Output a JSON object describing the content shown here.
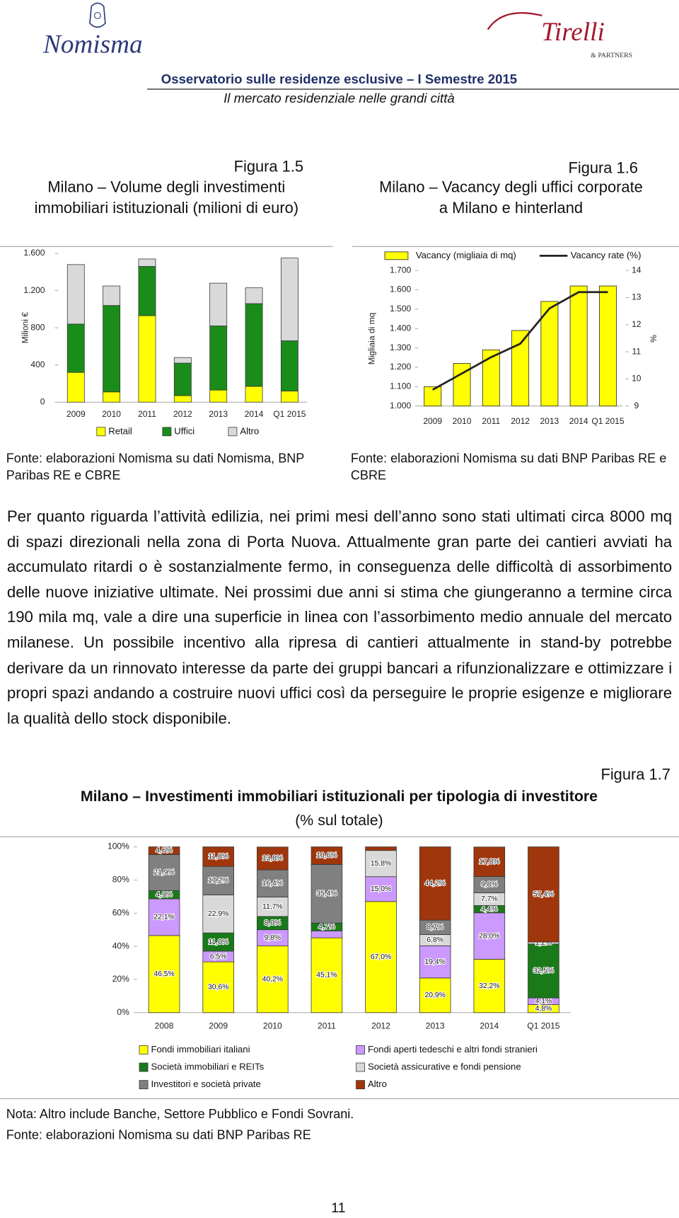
{
  "header": {
    "logo_left": "Nomisma",
    "logo_right": "Tirelli",
    "logo_right_sub": "& PARTNERS",
    "title": "Osservatorio sulle residenze esclusive – I Semestre 2015",
    "subtitle": "Il mercato residenziale nelle grandi città"
  },
  "chart_data": [
    {
      "type": "bar",
      "stacked": true,
      "figure": "Figura 1.5",
      "title": "Milano – Volume degli investimenti immobiliari istituzionali (milioni di euro)",
      "y_label": "Milioni €",
      "categories": [
        "2009",
        "2010",
        "2011",
        "2012",
        "2013",
        "2014",
        "Q1 2015"
      ],
      "series": [
        {
          "name": "Retail",
          "color": "#ffff00",
          "values": [
            320,
            110,
            930,
            70,
            130,
            170,
            120
          ]
        },
        {
          "name": "Uffici",
          "color": "#1a8c1a",
          "values": [
            520,
            930,
            530,
            350,
            690,
            890,
            540
          ]
        },
        {
          "name": "Altro",
          "color": "#d9d9d9",
          "values": [
            640,
            210,
            80,
            60,
            460,
            170,
            890
          ]
        }
      ],
      "ylim": [
        0,
        1600
      ],
      "yticks": [
        0,
        400,
        800,
        {
          "value": 1200,
          "label": "1.200"
        },
        {
          "value": 1600,
          "label": "1.600"
        }
      ],
      "source": "Fonte: elaborazioni Nomisma su dati Nomisma, BNP Paribas RE e CBRE"
    },
    {
      "type": "combo",
      "figure": "Figura 1.6",
      "title": "Milano – Vacancy degli uffici corporate a Milano e hinterland",
      "y_label": "Migliaia di mq",
      "y2_label": "%",
      "categories": [
        "2009",
        "2010",
        "2011",
        "2012",
        "2013",
        "2014",
        "Q1 2015"
      ],
      "series": [
        {
          "name": "Vacancy (migliaia di mq)",
          "type": "bar",
          "color": "#ffff00",
          "values": [
            1100,
            1220,
            1290,
            1390,
            1540,
            1620,
            1620
          ]
        },
        {
          "name": "Vacancy rate (%)",
          "type": "line",
          "axis": "y2",
          "color": "#222222",
          "values": [
            9.6,
            10.2,
            10.8,
            11.3,
            12.6,
            13.2,
            13.2
          ]
        }
      ],
      "ylim": [
        1000,
        1700
      ],
      "yticks": [
        {
          "value": 1000,
          "label": "1.000"
        },
        {
          "value": 1100,
          "label": "1.100"
        },
        {
          "value": 1200,
          "label": "1.200"
        },
        {
          "value": 1300,
          "label": "1.300"
        },
        {
          "value": 1400,
          "label": "1.400"
        },
        {
          "value": 1500,
          "label": "1.500"
        },
        {
          "value": 1600,
          "label": "1.600"
        },
        {
          "value": 1700,
          "label": "1.700"
        }
      ],
      "y2lim": [
        9,
        14
      ],
      "y2ticks": [
        9,
        10,
        11,
        12,
        13,
        14
      ],
      "source": "Fonte: elaborazioni Nomisma su dati BNP Paribas RE e CBRE"
    },
    {
      "type": "bar",
      "stacked": true,
      "figure": "Figura 1.7",
      "title": "Milano – Investimenti immobiliari istituzionali per tipologia di investitore",
      "subtitle": "(% sul totale)",
      "categories": [
        "2008",
        "2009",
        "2010",
        "2011",
        "2012",
        "2013",
        "2014",
        "Q1 2015"
      ],
      "series": [
        {
          "name": "Fondi immobiliari italiani",
          "color": "#ffff00",
          "values": [
            46.5,
            30.6,
            40.2,
            45.1,
            67.0,
            20.9,
            32.2,
            4.8
          ],
          "value_labels": [
            "46,5%",
            "30,6%",
            "40,2%",
            "45,1%",
            "67,0%",
            "20,9%",
            "32,2%",
            "4,8%"
          ]
        },
        {
          "name": "Fondi aperti tedeschi e altri fondi stranieri",
          "color": "#cc99ff",
          "values": [
            22.1,
            6.5,
            9.8,
            4.2,
            15.0,
            19.4,
            28.0,
            4.1
          ],
          "value_labels": [
            "22,1%",
            "6,5%",
            "9,8%",
            null,
            "15,0%",
            "19,4%",
            "28,0%",
            "4,1%"
          ]
        },
        {
          "name": "Società immobiliari e REITs",
          "color": "#1a7a1a",
          "values": [
            4.9,
            11.0,
            8.0,
            4.7,
            0,
            0,
            4.4,
            32.5
          ],
          "value_labels": [
            "4,9%",
            "11,0%",
            "8,0%",
            "4,7%",
            null,
            null,
            "4,4%",
            "32,5%"
          ]
        },
        {
          "name": "Società assicurative e fondi pensione",
          "color": "#d9d9d9",
          "values": [
            0,
            22.9,
            11.7,
            0,
            15.8,
            6.8,
            7.7,
            1.2
          ],
          "value_labels": [
            null,
            "22,9%",
            "11,7%",
            null,
            "15,8%",
            "6,8%",
            "7,7%",
            "1,2%"
          ]
        },
        {
          "name": "Investitori e società private",
          "color": "#808080",
          "values": [
            21.9,
            17.2,
            16.4,
            35.4,
            0,
            8.7,
            9.8,
            0
          ],
          "value_labels": [
            "21,9%",
            "17,2%",
            "16,4%",
            "35,4%",
            null,
            "8,7%",
            "9,8%",
            null
          ]
        },
        {
          "name": "Altro",
          "color": "#a0360c",
          "values": [
            4.6,
            11.8,
            13.8,
            10.6,
            2.2,
            44.2,
            17.8,
            57.4
          ],
          "value_labels": [
            "4,6%",
            "11,8%",
            "13,8%",
            "10,6%",
            null,
            "44,2%",
            "17,8%",
            "57,4%"
          ]
        }
      ],
      "ylim": [
        0,
        100
      ],
      "yticks": [
        {
          "value": 0,
          "label": "0%"
        },
        {
          "value": 20,
          "label": "20%"
        },
        {
          "value": 40,
          "label": "40%"
        },
        {
          "value": 60,
          "label": "60%"
        },
        {
          "value": 80,
          "label": "80%"
        },
        {
          "value": 100,
          "label": "100%"
        }
      ],
      "notes": [
        "Nota: Altro include Banche, Settore Pubblico e Fondi Sovrani.",
        "Fonte: elaborazioni Nomisma su dati BNP Paribas RE"
      ]
    }
  ],
  "body": {
    "paragraph": "Per quanto riguarda l’attività edilizia, nei primi mesi dell’anno sono stati ultimati circa 8000 mq di spazi direzionali nella zona di Porta Nuova. Attualmente gran parte dei cantieri avviati ha accumulato ritardi o è sostanzialmente fermo, in conseguenza delle difficoltà di assorbimento delle nuove iniziative ultimate. Nei prossimi due anni si stima che giungeranno a termine circa 190 mila mq, vale a dire una superficie in linea con l’assorbimento medio annuale del mercato milanese. Un possibile incentivo alla ripresa di cantieri attualmente in stand-by potrebbe derivare da un rinnovato interesse da parte dei gruppi bancari a rifunzionalizzare e ottimizzare i propri spazi andando a costruire nuovi uffici così da perseguire le proprie esigenze e migliorare la qualità dello stock disponibile."
  },
  "page_number": "11"
}
